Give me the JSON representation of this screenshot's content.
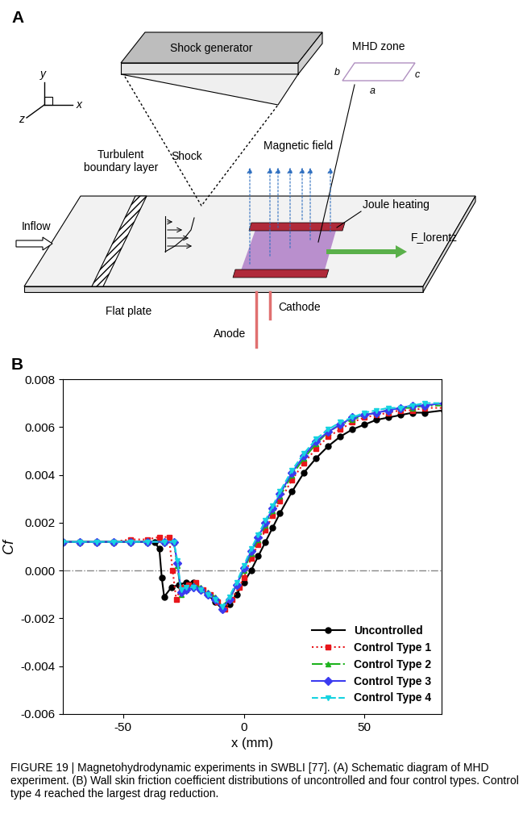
{
  "diagram": {
    "panel_label": "A",
    "labels": {
      "shock_generator": "Shock generator",
      "shock": "Shock",
      "mhd_zone": "MHD zone",
      "a": "a",
      "b": "b",
      "c": "c",
      "axis_x": "x",
      "axis_y": "y",
      "axis_z": "z",
      "turbulent_boundary_layer": "Turbulent\nboundary layer",
      "magnetic_field": "Magnetic field",
      "inflow": "Inflow",
      "joule_heating": "Joule heating",
      "f_lorentz": "F_lorentz",
      "flat_plate": "Flat plate",
      "cathode": "Cathode",
      "anode": "Anode"
    }
  },
  "chart_panel_label": "B",
  "chart_data": {
    "type": "line",
    "x_label": "x (mm)",
    "y_label": "Cf",
    "xlim": [
      -75,
      82
    ],
    "xticks": [
      -50,
      0,
      50
    ],
    "ylim": [
      -0.006,
      0.008
    ],
    "yticks": [
      {
        "value": -0.006,
        "label": "-0.006"
      },
      {
        "value": -0.004,
        "label": "-0.004"
      },
      {
        "value": -0.002,
        "label": "-0.002"
      },
      {
        "value": 0.0,
        "label": "0.000"
      },
      {
        "value": 0.002,
        "label": "0.002"
      },
      {
        "value": 0.004,
        "label": "0.004"
      },
      {
        "value": 0.006,
        "label": "0.006"
      },
      {
        "value": 0.008,
        "label": "0.008"
      }
    ],
    "hline": 0.0,
    "legend": "lower right",
    "grid": false,
    "series": [
      {
        "name": "Uncontrolled",
        "color": "#000000",
        "marker": "circle",
        "line_style": "solid",
        "x": [
          -75,
          -68,
          -61,
          -54,
          -47,
          -40,
          -37,
          -35,
          -34,
          -33,
          -30,
          -27,
          -24,
          -21,
          -18,
          -15,
          -12,
          -9,
          -6,
          -3,
          0,
          3,
          6,
          9,
          12,
          15,
          20,
          25,
          30,
          35,
          40,
          45,
          50,
          55,
          60,
          65,
          70,
          75,
          83
        ],
        "values": [
          0.0012,
          0.0012,
          0.0012,
          0.0012,
          0.0012,
          0.0012,
          0.0012,
          0.0009,
          -0.0003,
          -0.0011,
          -0.0007,
          -0.0006,
          -0.0005,
          -0.0005,
          -0.0008,
          -0.001,
          -0.0013,
          -0.0016,
          -0.0014,
          -0.001,
          -0.0005,
          0.0,
          0.0006,
          0.0012,
          0.0018,
          0.0024,
          0.0033,
          0.0041,
          0.0047,
          0.0052,
          0.0056,
          0.0059,
          0.0061,
          0.0063,
          0.0064,
          0.0065,
          0.0066,
          0.0066,
          0.0067
        ]
      },
      {
        "name": "Control Type 1",
        "color": "#e8161b",
        "marker": "square",
        "line_style": "dotted",
        "x": [
          -75,
          -68,
          -61,
          -54,
          -47,
          -40,
          -35,
          -31,
          -29.5,
          -28,
          -26,
          -23,
          -20,
          -17,
          -14,
          -11,
          -8,
          -5,
          -2,
          0,
          3,
          6,
          9,
          12,
          15,
          20,
          25,
          30,
          35,
          40,
          45,
          50,
          55,
          60,
          65,
          70,
          75,
          83
        ],
        "values": [
          0.0012,
          0.0012,
          0.0012,
          0.0012,
          0.0013,
          0.0013,
          0.0014,
          0.0014,
          0.0,
          -0.0012,
          -0.0007,
          -0.0006,
          -0.0005,
          -0.0008,
          -0.001,
          -0.0013,
          -0.0016,
          -0.0012,
          -0.0007,
          -0.0003,
          0.0005,
          0.0011,
          0.0017,
          0.0023,
          0.0029,
          0.0038,
          0.0045,
          0.0051,
          0.0056,
          0.0059,
          0.0062,
          0.0064,
          0.0065,
          0.0066,
          0.0067,
          0.0067,
          0.0068,
          0.0068
        ]
      },
      {
        "name": "Control Type 2",
        "color": "#1db31d",
        "marker": "triangle_up",
        "line_style": "dashdot",
        "x": [
          -75,
          -68,
          -61,
          -54,
          -47,
          -40,
          -33,
          -29,
          -27.5,
          -26,
          -24,
          -21,
          -18,
          -15,
          -12,
          -9,
          -6,
          -3,
          0,
          3,
          6,
          9,
          12,
          15,
          20,
          25,
          30,
          35,
          40,
          45,
          50,
          55,
          60,
          65,
          70,
          75,
          83
        ],
        "values": [
          0.0012,
          0.0012,
          0.0012,
          0.0012,
          0.0012,
          0.0012,
          0.0012,
          0.0012,
          0.0002,
          -0.001,
          -0.0008,
          -0.0006,
          -0.0007,
          -0.0009,
          -0.0011,
          -0.0015,
          -0.0012,
          -0.0006,
          0.0,
          0.0007,
          0.0013,
          0.0019,
          0.0025,
          0.0031,
          0.004,
          0.0047,
          0.0053,
          0.0058,
          0.0061,
          0.0063,
          0.0065,
          0.0066,
          0.0067,
          0.0068,
          0.0068,
          0.0069,
          0.0069
        ]
      },
      {
        "name": "Control Type 3",
        "color": "#3b3bf0",
        "marker": "diamond",
        "line_style": "solid",
        "x": [
          -75,
          -68,
          -61,
          -54,
          -47,
          -40,
          -33,
          -29,
          -27.5,
          -26,
          -24,
          -21,
          -18,
          -15,
          -12,
          -9,
          -6,
          -3,
          0,
          3,
          6,
          9,
          12,
          15,
          20,
          25,
          30,
          35,
          40,
          45,
          50,
          55,
          60,
          65,
          70,
          75,
          83
        ],
        "values": [
          0.0012,
          0.0012,
          0.0012,
          0.0012,
          0.0012,
          0.0012,
          0.0012,
          0.0012,
          0.0003,
          -0.0009,
          -0.0008,
          -0.0007,
          -0.0008,
          -0.001,
          -0.0012,
          -0.0016,
          -0.0012,
          -0.0006,
          0.0001,
          0.0008,
          0.0014,
          0.002,
          0.0026,
          0.0032,
          0.0041,
          0.0048,
          0.0054,
          0.0058,
          0.0061,
          0.0064,
          0.0065,
          0.0066,
          0.0067,
          0.0068,
          0.0069,
          0.0069,
          0.007
        ]
      },
      {
        "name": "Control Type 4",
        "color": "#16d3e0",
        "marker": "triangle_down",
        "line_style": "dashed",
        "x": [
          -75,
          -68,
          -61,
          -54,
          -47,
          -40,
          -33,
          -29,
          -27.5,
          -26,
          -24,
          -21,
          -18,
          -15,
          -12,
          -9,
          -6,
          -3,
          0,
          3,
          6,
          9,
          12,
          15,
          20,
          25,
          30,
          35,
          40,
          45,
          50,
          55,
          60,
          65,
          70,
          75,
          83
        ],
        "values": [
          0.0012,
          0.0012,
          0.0012,
          0.0012,
          0.0012,
          0.0012,
          0.0012,
          0.0012,
          0.0004,
          -0.0008,
          -0.0007,
          -0.0007,
          -0.0008,
          -0.001,
          -0.0012,
          -0.0015,
          -0.0011,
          -0.0005,
          0.0002,
          0.0009,
          0.0015,
          0.0021,
          0.0027,
          0.0033,
          0.0042,
          0.0049,
          0.0055,
          0.0059,
          0.0062,
          0.0064,
          0.0066,
          0.0067,
          0.0068,
          0.0068,
          0.0069,
          0.007,
          0.007
        ]
      }
    ]
  },
  "caption": "FIGURE 19 | Magnetohydrodynamic experiments in SWBLI [77]. (A) Schematic diagram of MHD experiment. (B) Wall skin friction coefficient distributions of uncontrolled and four control types. Control type 4 reached the largest drag reduction."
}
